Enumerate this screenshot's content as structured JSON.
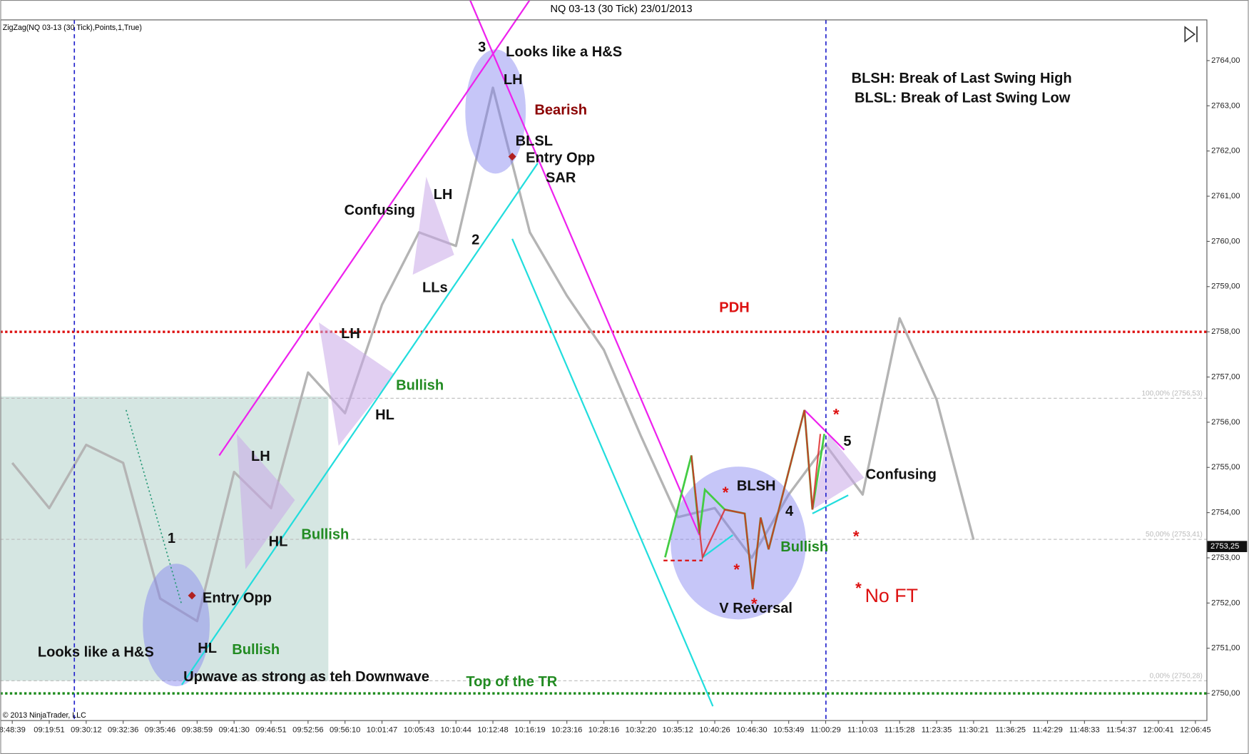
{
  "chart_data": {
    "type": "line",
    "title": "NQ 03-13 (30 Tick)  23/01/2013",
    "indicator": "ZigZag(NQ 03-13 (30 Tick),Points,1,True)",
    "copyright": "© 2013 NinjaTrader, LLC",
    "categories": [
      "8:48:39",
      "09:19:51",
      "09:30:12",
      "09:32:36",
      "09:35:46",
      "09:38:59",
      "09:41:30",
      "09:46:51",
      "09:52:56",
      "09:56:10",
      "10:01:47",
      "10:05:43",
      "10:10:44",
      "10:12:48",
      "10:16:19",
      "10:23:16",
      "10:28:16",
      "10:32:20",
      "10:35:12",
      "10:40:26",
      "10:46:30",
      "10:53:49",
      "11:00:29",
      "11:10:03",
      "11:15:28",
      "11:23:35",
      "11:30:21",
      "11:36:25",
      "11:42:29",
      "11:48:33",
      "11:54:37",
      "12:00:41",
      "12:06:45"
    ],
    "values": [
      2755.1,
      2754.1,
      2755.5,
      2755.1,
      2752.1,
      2751.6,
      2754.9,
      2754.1,
      2757.1,
      2756.2,
      2758.6,
      2760.2,
      2759.9,
      2763.4,
      2760.2,
      2758.8,
      2757.6,
      2755.7,
      2753.9,
      2754.1,
      2753.0,
      2754.4,
      2755.5,
      2754.4,
      2758.3,
      2756.5,
      2753.4,
      null,
      null,
      null,
      null,
      null,
      null
    ],
    "color": "#b4b4b4",
    "ylim": [
      2749.4,
      2764.9
    ],
    "yticks": [
      {
        "value": 2750,
        "label": "2750,00"
      },
      {
        "value": 2751,
        "label": "2751,00"
      },
      {
        "value": 2752,
        "label": "2752,00"
      },
      {
        "value": 2753,
        "label": "2753,00"
      },
      {
        "value": 2754,
        "label": "2754,00"
      },
      {
        "value": 2755,
        "label": "2755,00"
      },
      {
        "value": 2756,
        "label": "2756,00"
      },
      {
        "value": 2757,
        "label": "2757,00"
      },
      {
        "value": 2758,
        "label": "2758,00"
      },
      {
        "value": 2759,
        "label": "2759,00"
      },
      {
        "value": 2760,
        "label": "2760,00"
      },
      {
        "value": 2761,
        "label": "2761,00"
      },
      {
        "value": 2762,
        "label": "2762,00"
      },
      {
        "value": 2763,
        "label": "2763,00"
      },
      {
        "value": 2764,
        "label": "2764,00"
      }
    ],
    "last_price": {
      "value": 2753.25,
      "label": "2753,25"
    },
    "fib_levels": [
      {
        "value": 2756.53,
        "label": "100,00% (2756,53)"
      },
      {
        "value": 2753.41,
        "label": "50,00% (2753,41)"
      },
      {
        "value": 2750.28,
        "label": "0,00% (2750,28)"
      }
    ],
    "levels": [
      {
        "value": 2758,
        "color": "#dd1111"
      },
      {
        "value": 2750,
        "color": "#1a8a1a"
      }
    ],
    "annotations": [
      {
        "text": "Looks like a H&S",
        "color": "#111"
      },
      {
        "text": "3",
        "color": "#111"
      },
      {
        "text": "LH",
        "color": "#111"
      },
      {
        "text": "Bearish",
        "color": "#8b0000"
      },
      {
        "text": "BLSL",
        "color": "#111"
      },
      {
        "text": "Entry Opp",
        "color": "#111"
      },
      {
        "text": "SAR",
        "color": "#111"
      },
      {
        "text": "LH",
        "color": "#111"
      },
      {
        "text": "Confusing",
        "color": "#111"
      },
      {
        "text": "2",
        "color": "#111"
      },
      {
        "text": "LLs",
        "color": "#111"
      },
      {
        "text": "LH",
        "color": "#111"
      },
      {
        "text": "Bullish",
        "color": "#228b22"
      },
      {
        "text": "HL",
        "color": "#111"
      },
      {
        "text": "LH",
        "color": "#111"
      },
      {
        "text": "HL",
        "color": "#111"
      },
      {
        "text": "Bullish",
        "color": "#228b22"
      },
      {
        "text": "1",
        "color": "#111"
      },
      {
        "text": "Entry Opp",
        "color": "#111"
      },
      {
        "text": "HL",
        "color": "#111"
      },
      {
        "text": "Bullish",
        "color": "#228b22"
      },
      {
        "text": "Looks like a H&S",
        "color": "#111"
      },
      {
        "text": "Upwave as strong as teh Downwave",
        "color": "#111"
      },
      {
        "text": "Top of the TR",
        "color": "#228b22"
      },
      {
        "text": "PDH",
        "color": "#dd1111"
      },
      {
        "text": "BLSH: Break of Last Swing High",
        "color": "#111"
      },
      {
        "text": "BLSL: Break of Last Swing Low",
        "color": "#111"
      },
      {
        "text": "BLSH",
        "color": "#111"
      },
      {
        "text": "4",
        "color": "#111"
      },
      {
        "text": "Bullish",
        "color": "#228b22"
      },
      {
        "text": "V Reversal",
        "color": "#111"
      },
      {
        "text": "5",
        "color": "#111"
      },
      {
        "text": "Confusing",
        "color": "#111"
      },
      {
        "text": "No  FT",
        "color": "#dd1111"
      },
      {
        "text": "*",
        "color": "#dd1111"
      },
      {
        "text": "*",
        "color": "#dd1111"
      },
      {
        "text": "*",
        "color": "#dd1111"
      },
      {
        "text": "*",
        "color": "#dd1111"
      },
      {
        "text": "*",
        "color": "#dd1111"
      },
      {
        "text": "*",
        "color": "#dd1111"
      }
    ]
  }
}
